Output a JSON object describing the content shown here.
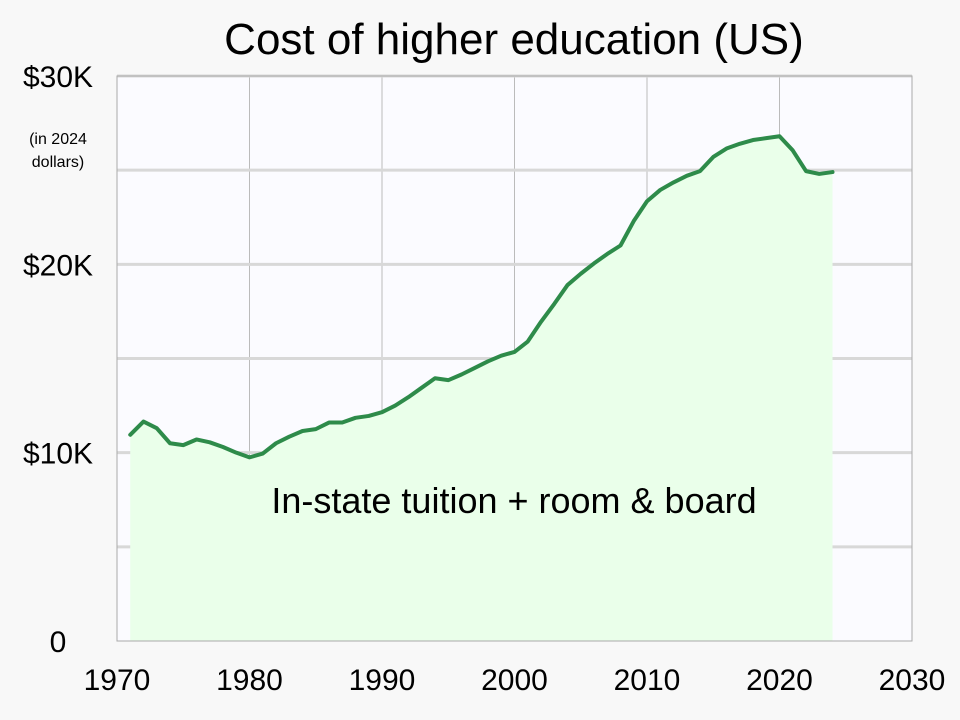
{
  "chart_data": {
    "type": "area",
    "title": "Cost of higher education (US)",
    "unit_note_line1": "(in 2024",
    "unit_note_line2": "dollars)",
    "annotation": "In-state tuition + room & board",
    "xlabel": "",
    "ylabel": "",
    "xlim": [
      1970,
      2030
    ],
    "ylim": [
      0,
      30000
    ],
    "x_ticks": [
      1970,
      1980,
      1990,
      2000,
      2010,
      2020,
      2030
    ],
    "x_tick_labels": [
      "1970",
      "1980",
      "1990",
      "2000",
      "2010",
      "2020",
      "2030"
    ],
    "y_ticks": [
      0,
      10000,
      20000,
      30000
    ],
    "y_tick_labels": [
      "0",
      "$10K",
      "$20K",
      "$30K"
    ],
    "y_minor_grid": [
      5000,
      15000,
      25000
    ],
    "grid": true,
    "line_color": "#2e8b4a",
    "fill_color": "#eaffea",
    "plot_background": "#fbfbff",
    "series": [
      {
        "x": [
          1971,
          1972,
          1973,
          1974,
          1975,
          1976,
          1977,
          1978,
          1979,
          1980,
          1981,
          1982,
          1983,
          1984,
          1985,
          1986,
          1987,
          1988,
          1989,
          1990,
          1991,
          1992,
          1993,
          1994,
          1995,
          1996,
          1997,
          1998,
          1999,
          2000,
          2001,
          2002,
          2003,
          2004,
          2005,
          2006,
          2007,
          2008,
          2009,
          2010,
          2011,
          2012,
          2013,
          2014,
          2015,
          2016,
          2017,
          2018,
          2019,
          2020,
          2021,
          2022,
          2023,
          2024
        ],
        "values": [
          10950,
          11650,
          11300,
          10500,
          10400,
          10700,
          10550,
          10300,
          10000,
          9750,
          9950,
          10500,
          10850,
          11150,
          11250,
          11600,
          11600,
          11850,
          11950,
          12150,
          12500,
          12950,
          13450,
          13950,
          13850,
          14150,
          14500,
          14850,
          15150,
          15350,
          15900,
          16950,
          17900,
          18900,
          19500,
          20050,
          20550,
          21000,
          22300,
          23350,
          23950,
          24350,
          24700,
          24950,
          25700,
          26150,
          26400,
          26600,
          26700,
          26800,
          26050,
          24950,
          24800,
          24900
        ]
      }
    ]
  }
}
